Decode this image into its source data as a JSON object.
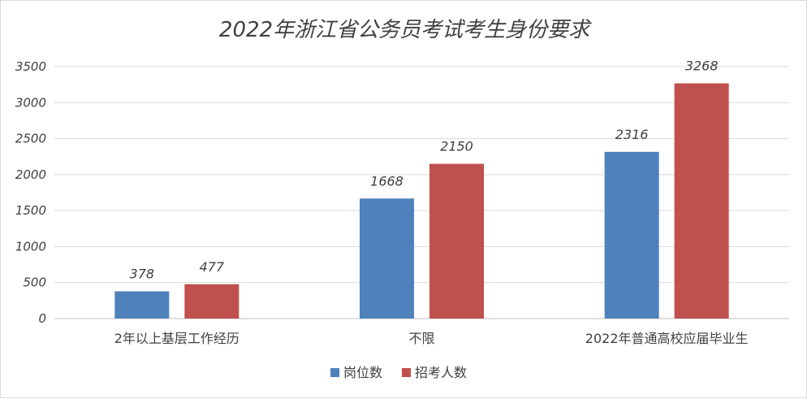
{
  "chart_data": {
    "type": "bar",
    "title": "2022年浙江省公务员考试考生身份要求",
    "categories": [
      "2年以上基层工作经历",
      "不限",
      "2022年普通高校应届毕业生"
    ],
    "series": [
      {
        "name": "岗位数",
        "color": "#4f81bd",
        "values": [
          378,
          1668,
          2316
        ]
      },
      {
        "name": "招考人数",
        "color": "#c0504d",
        "values": [
          477,
          2150,
          3268
        ]
      }
    ],
    "ylim": [
      0,
      3500
    ],
    "yticks": [
      0,
      500,
      1000,
      1500,
      2000,
      2500,
      3000,
      3500
    ],
    "grid": true,
    "legend": "bottom"
  }
}
